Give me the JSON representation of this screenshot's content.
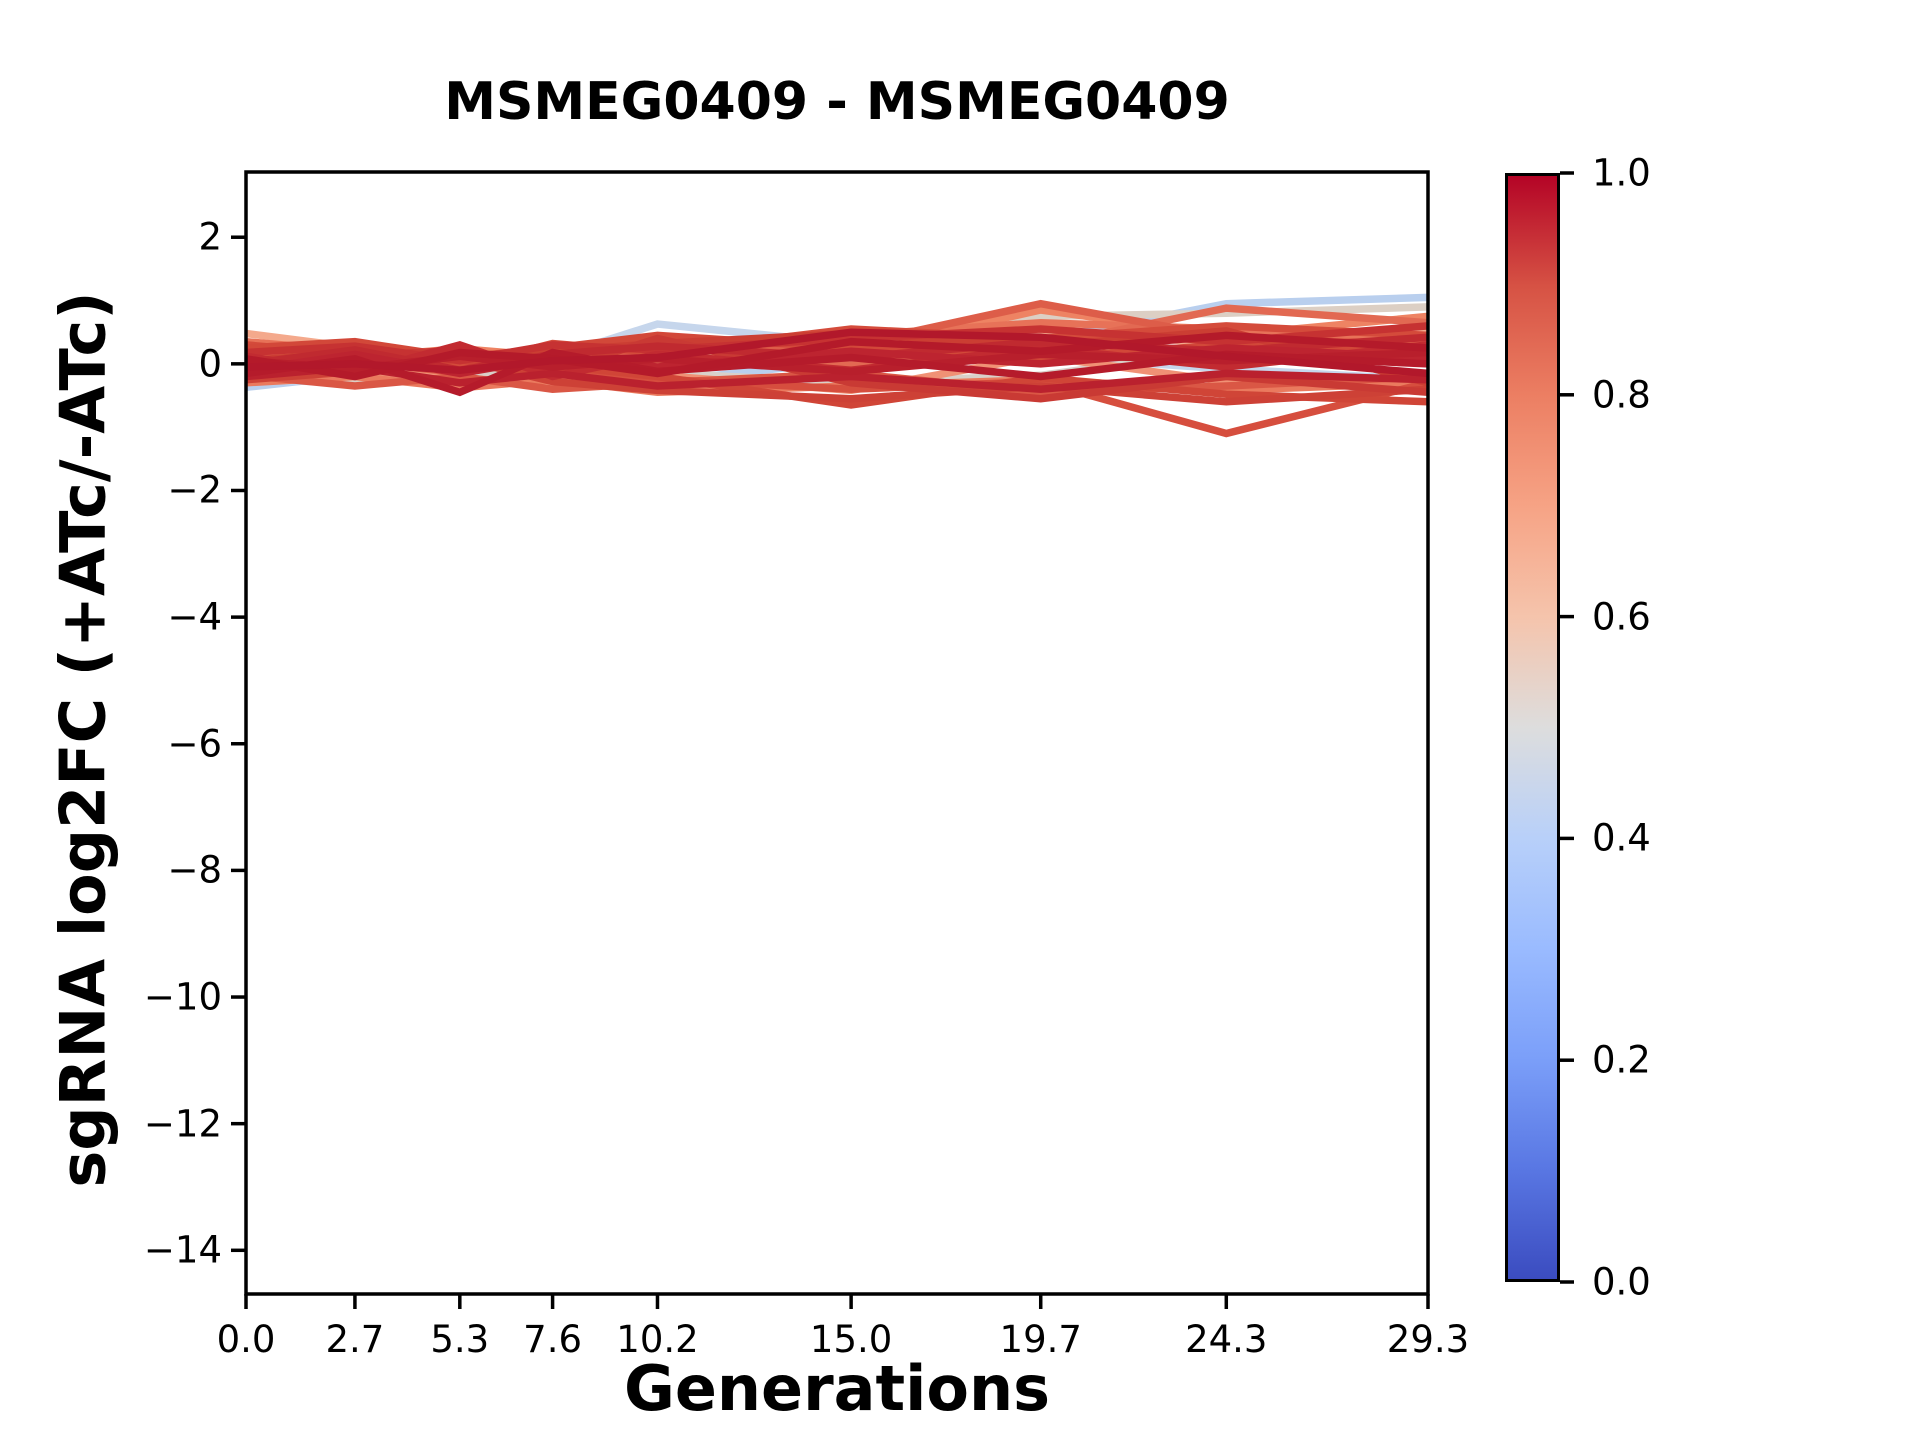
{
  "title": "MSMEG0409 - MSMEG0409",
  "accent_colors": {
    "axis": "#000000",
    "background": "#ffffff",
    "cmap_low": "#3b4cc0",
    "cmap_mid": "#dddddd",
    "cmap_high": "#b40426"
  },
  "chart_data": {
    "type": "line",
    "title": "MSMEG0409 - MSMEG0409",
    "xlabel": "Generations",
    "ylabel": "sgRNA log2FC (+ATc/-ATc)",
    "xlim": [
      0,
      29.3
    ],
    "ylim": [
      -14.69,
      3.03
    ],
    "grid": false,
    "x": [
      0.0,
      2.7,
      5.3,
      7.6,
      10.2,
      15.0,
      19.7,
      24.3,
      29.3
    ],
    "x_tick_labels": [
      "0.0",
      "2.7",
      "5.3",
      "7.6",
      "10.2",
      "15.0",
      "19.7",
      "24.3",
      "29.3"
    ],
    "y_ticks": [
      2,
      0,
      -2,
      -4,
      -6,
      -8,
      -10,
      -12,
      -14
    ],
    "y_tick_labels": [
      "2",
      "0",
      "−2",
      "−4",
      "−6",
      "−8",
      "−10",
      "−12",
      "−14"
    ],
    "series": [
      {
        "colormap_value": 0.4,
        "color": "#b9cfee",
        "values": [
          -0.37,
          -0.18,
          -0.22,
          -0.12,
          -0.28,
          0.05,
          0.38,
          0.95,
          1.05
        ]
      },
      {
        "colormap_value": 0.43,
        "color": "#c6d6ec",
        "values": [
          -0.25,
          -0.3,
          -0.08,
          0.1,
          0.63,
          0.32,
          0.12,
          -0.08,
          -0.25
        ]
      },
      {
        "colormap_value": 0.52,
        "color": "#d9d0c9",
        "values": [
          -0.12,
          0.06,
          -0.18,
          -0.04,
          -0.14,
          -0.3,
          -0.18,
          0.22,
          0.38
        ]
      },
      {
        "colormap_value": 0.55,
        "color": "#dccfc4",
        "values": [
          -0.2,
          -0.28,
          0.02,
          0.1,
          0.18,
          0.12,
          0.75,
          0.8,
          0.9
        ]
      },
      {
        "colormap_value": 0.65,
        "color": "#f4a98c",
        "values": [
          0.48,
          0.26,
          0.1,
          0.02,
          0.14,
          0.28,
          0.52,
          0.32,
          0.52
        ]
      },
      {
        "colormap_value": 0.7,
        "color": "#f09175",
        "values": [
          0.06,
          -0.12,
          -0.22,
          -0.33,
          -0.18,
          -0.42,
          0.12,
          -0.28,
          -0.35
        ]
      },
      {
        "colormap_value": 0.74,
        "color": "#ee8363",
        "values": [
          0.22,
          0.1,
          0.24,
          0.12,
          0.04,
          0.18,
          0.85,
          0.45,
          0.75
        ]
      },
      {
        "colormap_value": 0.76,
        "color": "#ea7a5e",
        "values": [
          -0.3,
          -0.2,
          -0.38,
          -0.25,
          -0.45,
          -0.35,
          -0.25,
          -0.42,
          -0.3
        ]
      },
      {
        "colormap_value": 0.78,
        "color": "#e77258",
        "values": [
          0.35,
          0.2,
          0.15,
          0.05,
          0.25,
          0.45,
          0.65,
          0.55,
          0.38
        ]
      },
      {
        "colormap_value": 0.8,
        "color": "#e26952",
        "values": [
          0.14,
          0.18,
          0.04,
          0.22,
          0.08,
          -0.02,
          0.28,
          0.88,
          0.65
        ]
      },
      {
        "colormap_value": 0.82,
        "color": "#dd5d49",
        "values": [
          0.1,
          0.04,
          -0.14,
          0.1,
          0.2,
          0.3,
          0.95,
          0.42,
          0.3
        ]
      },
      {
        "colormap_value": 0.83,
        "color": "#da5745",
        "values": [
          -0.18,
          -0.35,
          -0.2,
          -0.4,
          -0.3,
          -0.15,
          -0.45,
          -0.35,
          -0.2
        ]
      },
      {
        "colormap_value": 0.85,
        "color": "#d64e3e",
        "values": [
          -0.05,
          0.1,
          -0.02,
          -0.1,
          -0.24,
          -0.4,
          -0.28,
          -1.1,
          -0.3
        ]
      },
      {
        "colormap_value": 0.86,
        "color": "#d44b3b",
        "values": [
          0.3,
          0.15,
          -0.05,
          0.32,
          0.18,
          0.55,
          0.4,
          0.6,
          0.45
        ]
      },
      {
        "colormap_value": 0.87,
        "color": "#d24839",
        "values": [
          0.25,
          0.35,
          0.1,
          0.25,
          0.45,
          0.25,
          0.1,
          0.3,
          0.2
        ]
      },
      {
        "colormap_value": 0.88,
        "color": "#d04537",
        "values": [
          0.02,
          -0.1,
          0.14,
          -0.02,
          -0.2,
          -0.65,
          -0.22,
          -0.48,
          -0.6
        ]
      },
      {
        "colormap_value": 0.89,
        "color": "#cd4136",
        "values": [
          -0.25,
          -0.12,
          0.08,
          -0.28,
          -0.42,
          -0.55,
          -0.35,
          -0.6,
          -0.4
        ]
      },
      {
        "colormap_value": 0.9,
        "color": "#cb3e33",
        "values": [
          0.05,
          0.18,
          0.1,
          0.2,
          0.32,
          0.48,
          0.28,
          0.52,
          -0.3
        ]
      },
      {
        "colormap_value": 0.91,
        "color": "#c93a34",
        "values": [
          -0.08,
          0.12,
          0.22,
          -0.12,
          0.4,
          -0.3,
          -0.55,
          -0.2,
          -0.45
        ]
      },
      {
        "colormap_value": 0.92,
        "color": "#c63232",
        "values": [
          0.18,
          0.28,
          0.05,
          0.3,
          0.22,
          0.4,
          0.55,
          0.35,
          0.6
        ]
      },
      {
        "colormap_value": 0.93,
        "color": "#c22b31",
        "values": [
          0.12,
          -0.15,
          0.3,
          -0.2,
          0.15,
          -0.1,
          0.25,
          -0.05,
          0.3
        ]
      },
      {
        "colormap_value": 0.94,
        "color": "#c02a30",
        "values": [
          0.0,
          0.22,
          -0.1,
          0.15,
          0.28,
          0.1,
          0.35,
          0.2,
          0.42
        ]
      },
      {
        "colormap_value": 0.95,
        "color": "#bd2430",
        "values": [
          -0.1,
          0.15,
          -0.15,
          0.1,
          -0.05,
          0.2,
          0.0,
          0.25,
          0.1
        ]
      },
      {
        "colormap_value": 0.96,
        "color": "#ba212e",
        "values": [
          -0.2,
          -0.05,
          -0.3,
          -0.15,
          -0.35,
          -0.2,
          -0.4,
          -0.15,
          -0.25
        ]
      },
      {
        "colormap_value": 0.97,
        "color": "#b81f2c",
        "values": [
          0.05,
          -0.08,
          0.12,
          -0.05,
          0.08,
          -0.12,
          0.15,
          0.05,
          0.18
        ]
      },
      {
        "colormap_value": 0.98,
        "color": "#b51b2b",
        "values": [
          -0.15,
          0.08,
          -0.45,
          0.18,
          -0.12,
          0.1,
          -0.2,
          0.15,
          0.0
        ]
      },
      {
        "colormap_value": 0.99,
        "color": "#b41a2a",
        "values": [
          0.08,
          -0.2,
          0.18,
          0.08,
          -0.15,
          0.35,
          0.2,
          0.45,
          0.25
        ]
      },
      {
        "colormap_value": 1.0,
        "color": "#b2182b",
        "values": [
          -0.05,
          0.0,
          -0.1,
          0.05,
          0.1,
          0.5,
          0.42,
          0.12,
          -0.15
        ]
      }
    ],
    "colorbar": {
      "cmap": "coolwarm",
      "tick_labels": [
        "1.0",
        "0.8",
        "0.6",
        "0.4",
        "0.2",
        "0.0"
      ],
      "tick_values": [
        1.0,
        0.8,
        0.6,
        0.4,
        0.2,
        0.0
      ],
      "gradient_stops_bottom_to_top": [
        "#3b4cc0",
        "#5977e3",
        "#7b9ff9",
        "#9abbff",
        "#b8d0f9",
        "#dddddd",
        "#f5c4ac",
        "#f6a385",
        "#ec7f63",
        "#d65244",
        "#b40426"
      ]
    }
  }
}
